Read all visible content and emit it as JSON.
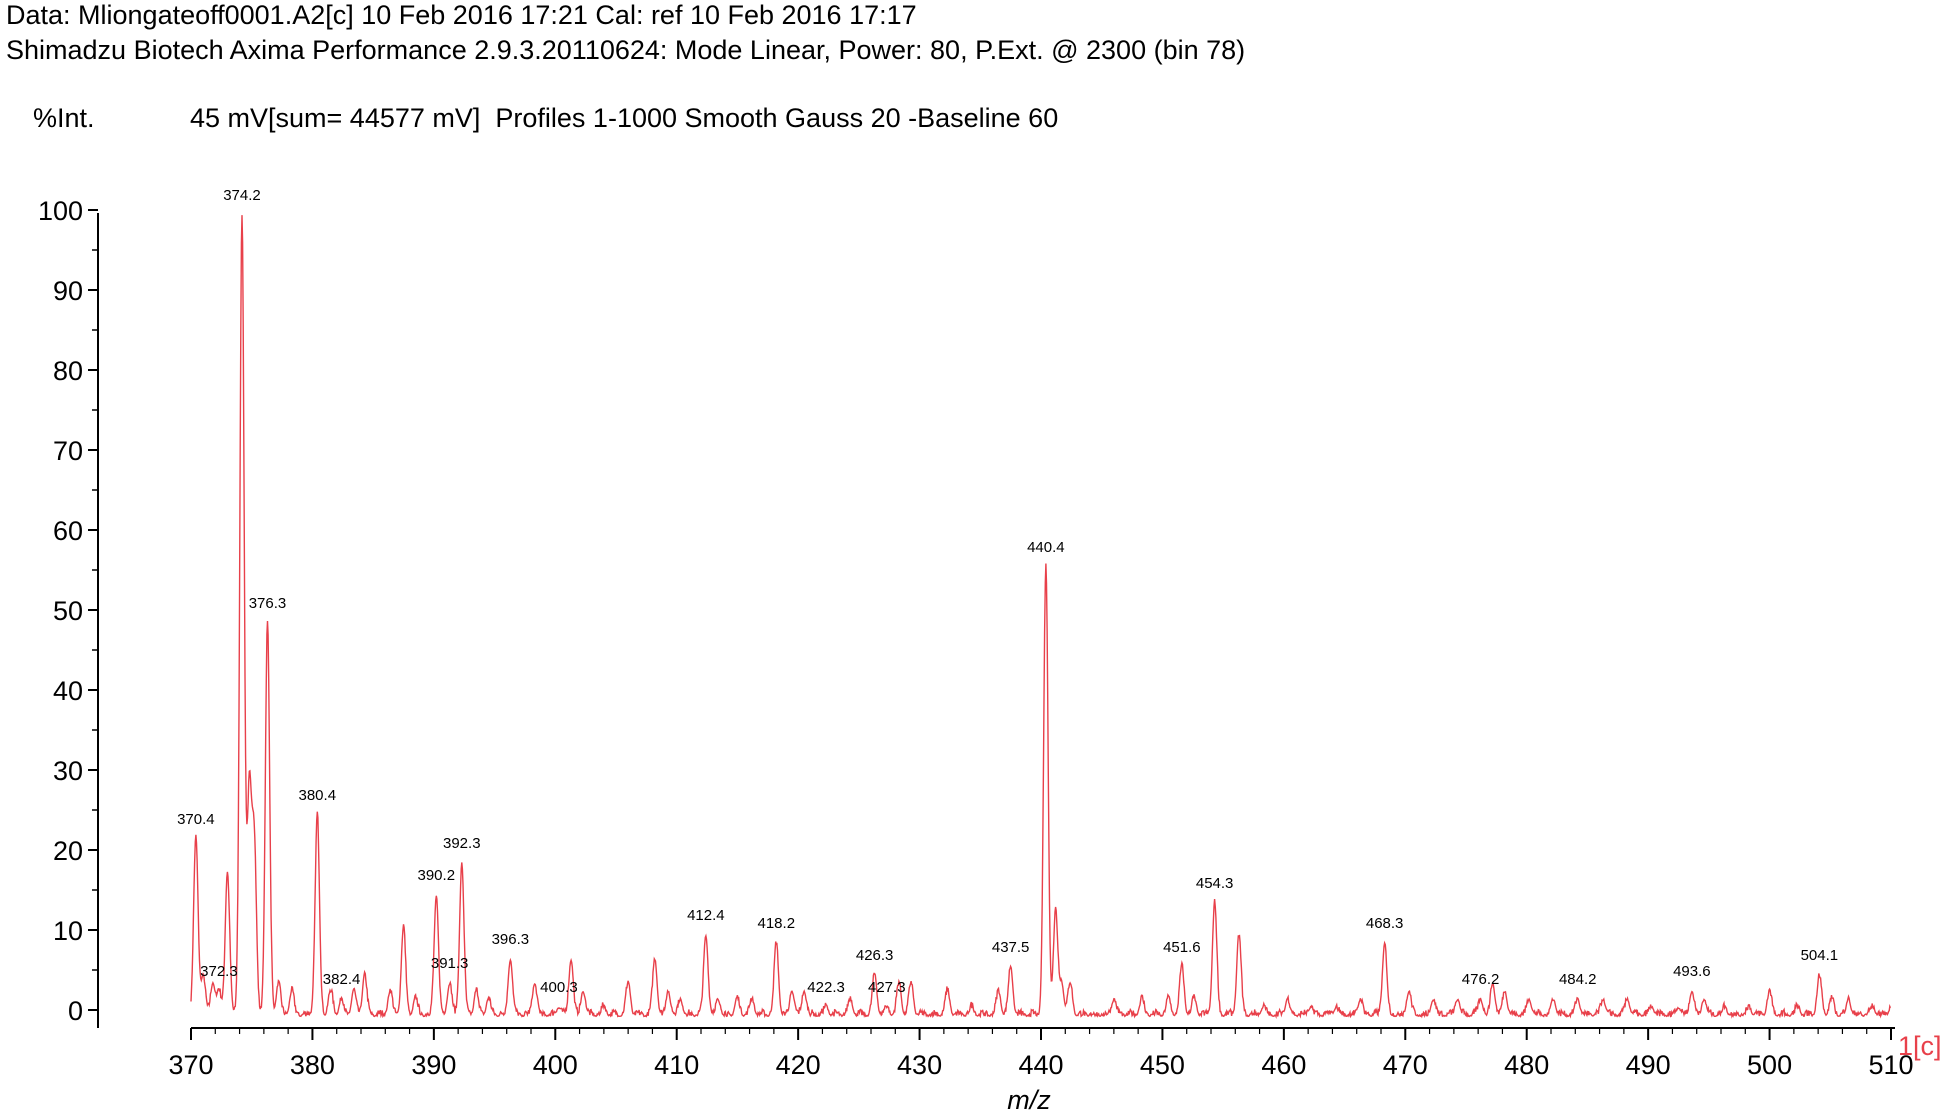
{
  "header": {
    "line1": "Data: Mliongateoff0001.A2[c] 10 Feb 2016 17:21 Cal: ref 10 Feb 2016 17:17",
    "line2": "Shimadzu Biotech Axima Performance 2.9.3.20110624: Mode Linear, Power: 80, P.Ext. @ 2300 (bin 78)",
    "int_label": "%Int.",
    "int_info": "45 mV[sum= 44577 mV]  Profiles 1-1000 Smooth Gauss 20 -Baseline 60"
  },
  "chart_data": {
    "type": "line",
    "xlabel": "m/z",
    "ylabel": "%Int.",
    "xlim": [
      370,
      510
    ],
    "ylim": [
      0,
      100
    ],
    "x_ticks": [
      "370",
      "380",
      "390",
      "400",
      "410",
      "420",
      "430",
      "440",
      "450",
      "460",
      "470",
      "480",
      "490",
      "500",
      "510"
    ],
    "y_ticks": [
      "0",
      "10",
      "20",
      "30",
      "40",
      "50",
      "60",
      "70",
      "80",
      "90",
      "100"
    ],
    "series_label": "1[c]",
    "line_color": "#e8404a",
    "peak_labels": [
      {
        "label": "370.4",
        "x": 370.4,
        "y": 22
      },
      {
        "label": "372.3",
        "x": 372.3,
        "y": 3
      },
      {
        "label": "374.2",
        "x": 374.2,
        "y": 100
      },
      {
        "label": "376.3",
        "x": 376.3,
        "y": 49
      },
      {
        "label": "380.4",
        "x": 380.4,
        "y": 25
      },
      {
        "label": "382.4",
        "x": 382.4,
        "y": 2
      },
      {
        "label": "390.2",
        "x": 390.2,
        "y": 15
      },
      {
        "label": "391.3",
        "x": 391.3,
        "y": 4
      },
      {
        "label": "392.3",
        "x": 392.3,
        "y": 19
      },
      {
        "label": "396.3",
        "x": 396.3,
        "y": 7
      },
      {
        "label": "400.3",
        "x": 400.3,
        "y": 1
      },
      {
        "label": "412.4",
        "x": 412.4,
        "y": 10
      },
      {
        "label": "418.2",
        "x": 418.2,
        "y": 9
      },
      {
        "label": "422.3",
        "x": 422.3,
        "y": 1
      },
      {
        "label": "426.3",
        "x": 426.3,
        "y": 5
      },
      {
        "label": "427.3",
        "x": 427.3,
        "y": 1
      },
      {
        "label": "437.5",
        "x": 437.5,
        "y": 6
      },
      {
        "label": "440.4",
        "x": 440.4,
        "y": 56
      },
      {
        "label": "451.6",
        "x": 451.6,
        "y": 6
      },
      {
        "label": "454.3",
        "x": 454.3,
        "y": 14
      },
      {
        "label": "468.3",
        "x": 468.3,
        "y": 9
      },
      {
        "label": "476.2",
        "x": 476.2,
        "y": 2
      },
      {
        "label": "484.2",
        "x": 484.2,
        "y": 2
      },
      {
        "label": "493.6",
        "x": 493.6,
        "y": 3
      },
      {
        "label": "504.1",
        "x": 504.1,
        "y": 5
      }
    ],
    "minor_peaks": [
      {
        "x": 371.0,
        "y": 5
      },
      {
        "x": 371.8,
        "y": 4
      },
      {
        "x": 373.0,
        "y": 18
      },
      {
        "x": 374.8,
        "y": 28
      },
      {
        "x": 375.2,
        "y": 22
      },
      {
        "x": 377.2,
        "y": 4
      },
      {
        "x": 378.3,
        "y": 3
      },
      {
        "x": 381.5,
        "y": 3
      },
      {
        "x": 383.4,
        "y": 3
      },
      {
        "x": 384.3,
        "y": 5
      },
      {
        "x": 386.4,
        "y": 3
      },
      {
        "x": 387.5,
        "y": 11
      },
      {
        "x": 388.5,
        "y": 2
      },
      {
        "x": 393.5,
        "y": 3
      },
      {
        "x": 394.5,
        "y": 2
      },
      {
        "x": 398.3,
        "y": 4
      },
      {
        "x": 401.3,
        "y": 7
      },
      {
        "x": 402.3,
        "y": 3
      },
      {
        "x": 404.0,
        "y": 1
      },
      {
        "x": 406.0,
        "y": 4
      },
      {
        "x": 408.2,
        "y": 7
      },
      {
        "x": 409.3,
        "y": 3
      },
      {
        "x": 410.3,
        "y": 2
      },
      {
        "x": 413.4,
        "y": 2
      },
      {
        "x": 415.0,
        "y": 2
      },
      {
        "x": 416.2,
        "y": 2
      },
      {
        "x": 419.5,
        "y": 3
      },
      {
        "x": 420.5,
        "y": 3
      },
      {
        "x": 424.3,
        "y": 2
      },
      {
        "x": 428.3,
        "y": 4
      },
      {
        "x": 429.3,
        "y": 4
      },
      {
        "x": 432.3,
        "y": 3
      },
      {
        "x": 434.3,
        "y": 1
      },
      {
        "x": 436.5,
        "y": 3
      },
      {
        "x": 441.2,
        "y": 13
      },
      {
        "x": 441.7,
        "y": 4
      },
      {
        "x": 442.4,
        "y": 4
      },
      {
        "x": 446.0,
        "y": 2
      },
      {
        "x": 448.3,
        "y": 2
      },
      {
        "x": 450.5,
        "y": 2
      },
      {
        "x": 452.6,
        "y": 2
      },
      {
        "x": 456.3,
        "y": 10
      },
      {
        "x": 458.3,
        "y": 1
      },
      {
        "x": 460.3,
        "y": 2
      },
      {
        "x": 462.2,
        "y": 1
      },
      {
        "x": 464.3,
        "y": 1
      },
      {
        "x": 466.3,
        "y": 2
      },
      {
        "x": 470.3,
        "y": 3
      },
      {
        "x": 472.3,
        "y": 2
      },
      {
        "x": 474.3,
        "y": 2
      },
      {
        "x": 477.2,
        "y": 4
      },
      {
        "x": 478.2,
        "y": 3
      },
      {
        "x": 480.2,
        "y": 2
      },
      {
        "x": 482.2,
        "y": 2
      },
      {
        "x": 486.3,
        "y": 2
      },
      {
        "x": 488.3,
        "y": 2
      },
      {
        "x": 490.3,
        "y": 1
      },
      {
        "x": 492.5,
        "y": 1
      },
      {
        "x": 494.6,
        "y": 2
      },
      {
        "x": 496.3,
        "y": 1
      },
      {
        "x": 498.3,
        "y": 1
      },
      {
        "x": 500.0,
        "y": 3
      },
      {
        "x": 502.3,
        "y": 1
      },
      {
        "x": 505.1,
        "y": 2
      },
      {
        "x": 506.5,
        "y": 2
      },
      {
        "x": 508.5,
        "y": 1
      },
      {
        "x": 510.0,
        "y": 1
      }
    ]
  }
}
